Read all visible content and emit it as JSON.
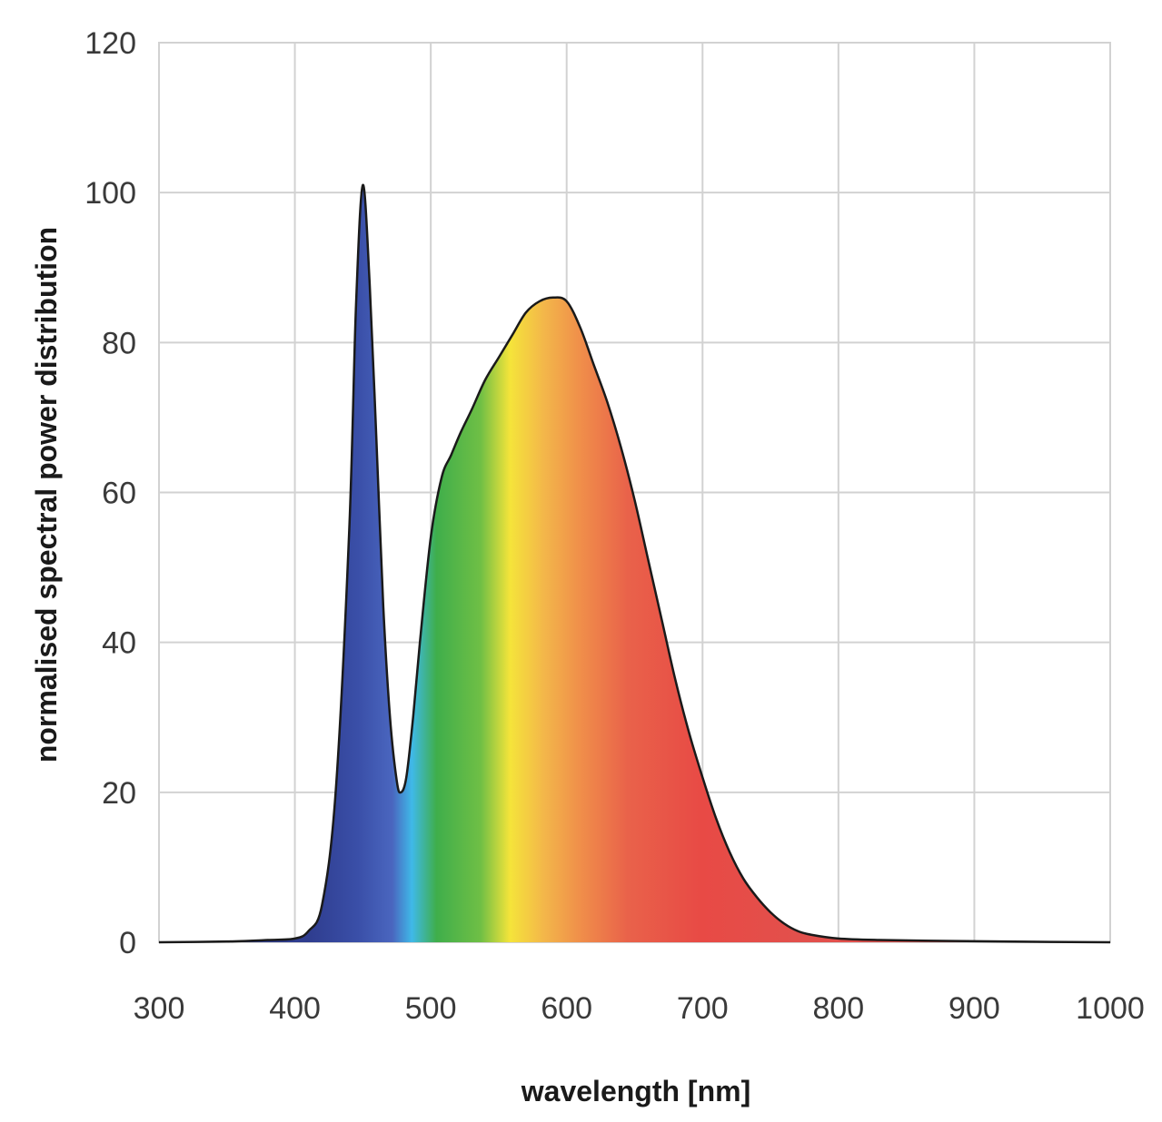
{
  "chart_data": {
    "type": "area",
    "title": "",
    "xlabel": "wavelength [nm]",
    "ylabel": "normalised spectral power distribution",
    "xlim": [
      300,
      1000
    ],
    "ylim": [
      0,
      120
    ],
    "x_ticks": [
      300,
      400,
      500,
      600,
      700,
      800,
      900,
      1000
    ],
    "y_ticks": [
      0,
      20,
      40,
      60,
      80,
      100,
      120
    ],
    "grid": true,
    "legend": "none",
    "fill": "visible-spectrum gradient (blue → cyan → green → yellow → orange → red)",
    "series": [
      {
        "x": [
          300,
          350,
          380,
          400,
          410,
          420,
          430,
          440,
          445,
          450,
          455,
          460,
          465,
          470,
          475,
          478,
          482,
          487,
          492,
          500,
          508,
          515,
          522,
          530,
          540,
          550,
          560,
          570,
          580,
          590,
          600,
          610,
          620,
          630,
          640,
          650,
          660,
          670,
          680,
          690,
          700,
          710,
          720,
          730,
          740,
          750,
          760,
          770,
          780,
          800,
          830,
          870,
          920,
          1000
        ],
        "y": [
          0,
          0.1,
          0.3,
          0.5,
          1.5,
          5,
          20,
          55,
          85,
          101,
          88,
          67,
          45,
          30,
          21.5,
          20,
          22,
          30,
          40,
          54,
          62,
          65,
          68,
          71,
          75,
          78,
          81,
          84,
          85.5,
          86,
          85.5,
          82,
          77,
          72,
          66,
          59,
          51,
          43,
          35,
          28,
          22,
          16.5,
          12,
          8.5,
          6,
          4,
          2.5,
          1.5,
          1,
          0.5,
          0.3,
          0.2,
          0.1,
          0
        ]
      }
    ],
    "colors": {
      "outline": "#1a1a1a",
      "violet_blue": "#3a4fa8",
      "blue": "#4a66bf",
      "cyan": "#3fb9e8",
      "green": "#3fae4b",
      "yellow": "#f5e43a",
      "orange": "#f0904a",
      "red": "#e84a45",
      "grid": "#d2d2d2"
    }
  }
}
